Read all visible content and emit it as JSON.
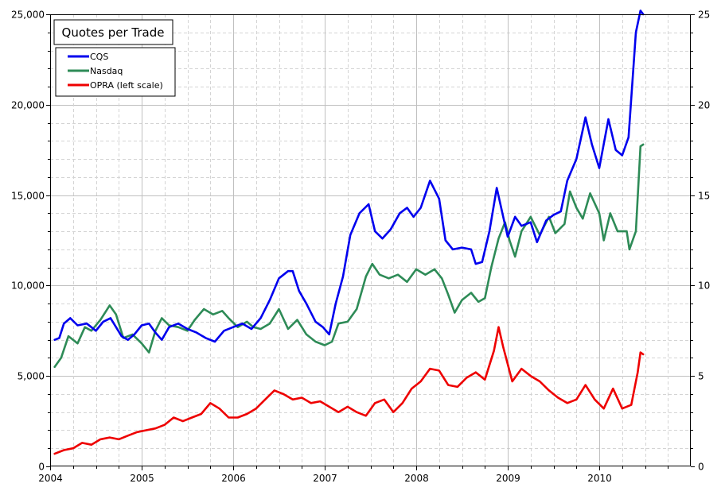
{
  "chart_data": {
    "type": "line",
    "title": "Quotes per Trade",
    "xlabel": "",
    "ylabel": "",
    "xlim": [
      2004.0,
      2011.0
    ],
    "ylim": [
      0,
      25000
    ],
    "y2lim": [
      0,
      25
    ],
    "x_ticks": [
      2004,
      2005,
      2006,
      2007,
      2008,
      2009,
      2010
    ],
    "y_ticks": [
      0,
      5000,
      10000,
      15000,
      20000,
      25000
    ],
    "y_tick_labels": [
      "0",
      "5,000",
      "10,000",
      "15,000",
      "20,000",
      "25,000"
    ],
    "y2_ticks": [
      0,
      5,
      10,
      15,
      20,
      25
    ],
    "grid": true,
    "legend": "top-left",
    "series": [
      {
        "name": "CQS",
        "color": "#0000ee",
        "points": [
          [
            2004.05,
            7000
          ],
          [
            2004.1,
            7100
          ],
          [
            2004.15,
            7900
          ],
          [
            2004.22,
            8200
          ],
          [
            2004.3,
            7800
          ],
          [
            2004.4,
            7900
          ],
          [
            2004.5,
            7500
          ],
          [
            2004.58,
            8000
          ],
          [
            2004.66,
            8200
          ],
          [
            2004.72,
            7700
          ],
          [
            2004.78,
            7200
          ],
          [
            2004.85,
            7000
          ],
          [
            2004.92,
            7300
          ],
          [
            2005.0,
            7800
          ],
          [
            2005.08,
            7900
          ],
          [
            2005.15,
            7400
          ],
          [
            2005.22,
            7000
          ],
          [
            2005.3,
            7700
          ],
          [
            2005.4,
            7900
          ],
          [
            2005.5,
            7600
          ],
          [
            2005.6,
            7400
          ],
          [
            2005.7,
            7100
          ],
          [
            2005.8,
            6900
          ],
          [
            2005.9,
            7500
          ],
          [
            2006.0,
            7700
          ],
          [
            2006.1,
            7900
          ],
          [
            2006.2,
            7600
          ],
          [
            2006.3,
            8200
          ],
          [
            2006.4,
            9200
          ],
          [
            2006.5,
            10400
          ],
          [
            2006.6,
            10800
          ],
          [
            2006.65,
            10800
          ],
          [
            2006.72,
            9700
          ],
          [
            2006.8,
            9000
          ],
          [
            2006.9,
            8000
          ],
          [
            2006.98,
            7700
          ],
          [
            2007.05,
            7300
          ],
          [
            2007.12,
            9000
          ],
          [
            2007.2,
            10500
          ],
          [
            2007.28,
            12800
          ],
          [
            2007.38,
            14000
          ],
          [
            2007.48,
            14500
          ],
          [
            2007.55,
            13000
          ],
          [
            2007.63,
            12600
          ],
          [
            2007.72,
            13100
          ],
          [
            2007.82,
            14000
          ],
          [
            2007.9,
            14300
          ],
          [
            2007.97,
            13800
          ],
          [
            2008.05,
            14300
          ],
          [
            2008.15,
            15800
          ],
          [
            2008.25,
            14800
          ],
          [
            2008.32,
            12500
          ],
          [
            2008.4,
            12000
          ],
          [
            2008.5,
            12100
          ],
          [
            2008.6,
            12000
          ],
          [
            2008.65,
            11200
          ],
          [
            2008.72,
            11300
          ],
          [
            2008.8,
            13000
          ],
          [
            2008.88,
            15400
          ],
          [
            2008.95,
            13800
          ],
          [
            2009.0,
            12700
          ],
          [
            2009.08,
            13800
          ],
          [
            2009.15,
            13300
          ],
          [
            2009.25,
            13500
          ],
          [
            2009.32,
            12400
          ],
          [
            2009.42,
            13600
          ],
          [
            2009.5,
            13900
          ],
          [
            2009.58,
            14100
          ],
          [
            2009.65,
            15800
          ],
          [
            2009.75,
            17000
          ],
          [
            2009.85,
            19300
          ],
          [
            2009.92,
            17800
          ],
          [
            2010.0,
            16500
          ],
          [
            2010.1,
            19200
          ],
          [
            2010.18,
            17500
          ],
          [
            2010.25,
            17200
          ],
          [
            2010.32,
            18200
          ],
          [
            2010.4,
            24000
          ],
          [
            2010.45,
            25200
          ],
          [
            2010.48,
            25000
          ]
        ]
      },
      {
        "name": "Nasdaq",
        "color": "#2e8b57",
        "points": [
          [
            2004.05,
            5500
          ],
          [
            2004.12,
            6000
          ],
          [
            2004.2,
            7200
          ],
          [
            2004.3,
            6800
          ],
          [
            2004.38,
            7700
          ],
          [
            2004.45,
            7500
          ],
          [
            2004.55,
            8100
          ],
          [
            2004.65,
            8900
          ],
          [
            2004.72,
            8400
          ],
          [
            2004.8,
            7100
          ],
          [
            2004.9,
            7300
          ],
          [
            2005.0,
            6800
          ],
          [
            2005.08,
            6300
          ],
          [
            2005.15,
            7500
          ],
          [
            2005.22,
            8200
          ],
          [
            2005.3,
            7800
          ],
          [
            2005.4,
            7700
          ],
          [
            2005.5,
            7500
          ],
          [
            2005.58,
            8100
          ],
          [
            2005.68,
            8700
          ],
          [
            2005.78,
            8400
          ],
          [
            2005.88,
            8600
          ],
          [
            2005.95,
            8200
          ],
          [
            2006.05,
            7700
          ],
          [
            2006.15,
            8000
          ],
          [
            2006.22,
            7700
          ],
          [
            2006.3,
            7600
          ],
          [
            2006.4,
            7900
          ],
          [
            2006.5,
            8700
          ],
          [
            2006.6,
            7600
          ],
          [
            2006.7,
            8100
          ],
          [
            2006.8,
            7300
          ],
          [
            2006.9,
            6900
          ],
          [
            2007.0,
            6700
          ],
          [
            2007.08,
            6900
          ],
          [
            2007.15,
            7900
          ],
          [
            2007.25,
            8000
          ],
          [
            2007.35,
            8700
          ],
          [
            2007.45,
            10500
          ],
          [
            2007.52,
            11200
          ],
          [
            2007.6,
            10600
          ],
          [
            2007.7,
            10400
          ],
          [
            2007.8,
            10600
          ],
          [
            2007.9,
            10200
          ],
          [
            2008.0,
            10900
          ],
          [
            2008.1,
            10600
          ],
          [
            2008.2,
            10900
          ],
          [
            2008.28,
            10400
          ],
          [
            2008.35,
            9500
          ],
          [
            2008.42,
            8500
          ],
          [
            2008.5,
            9200
          ],
          [
            2008.6,
            9600
          ],
          [
            2008.68,
            9100
          ],
          [
            2008.75,
            9300
          ],
          [
            2008.82,
            11000
          ],
          [
            2008.9,
            12600
          ],
          [
            2008.97,
            13500
          ],
          [
            2009.02,
            12500
          ],
          [
            2009.08,
            11600
          ],
          [
            2009.15,
            13000
          ],
          [
            2009.25,
            13800
          ],
          [
            2009.35,
            12800
          ],
          [
            2009.45,
            13800
          ],
          [
            2009.52,
            12900
          ],
          [
            2009.62,
            13400
          ],
          [
            2009.68,
            15200
          ],
          [
            2009.75,
            14300
          ],
          [
            2009.82,
            13700
          ],
          [
            2009.9,
            15100
          ],
          [
            2010.0,
            14000
          ],
          [
            2010.05,
            12500
          ],
          [
            2010.12,
            14000
          ],
          [
            2010.2,
            13000
          ],
          [
            2010.3,
            13000
          ],
          [
            2010.33,
            12000
          ],
          [
            2010.4,
            13000
          ],
          [
            2010.45,
            17700
          ],
          [
            2010.48,
            17800
          ]
        ]
      },
      {
        "name": "OPRA (left scale)",
        "color": "#ee0000",
        "points": [
          [
            2004.05,
            700
          ],
          [
            2004.15,
            900
          ],
          [
            2004.25,
            1000
          ],
          [
            2004.35,
            1300
          ],
          [
            2004.45,
            1200
          ],
          [
            2004.55,
            1500
          ],
          [
            2004.65,
            1600
          ],
          [
            2004.75,
            1500
          ],
          [
            2004.85,
            1700
          ],
          [
            2004.95,
            1900
          ],
          [
            2005.05,
            2000
          ],
          [
            2005.15,
            2100
          ],
          [
            2005.25,
            2300
          ],
          [
            2005.35,
            2700
          ],
          [
            2005.45,
            2500
          ],
          [
            2005.55,
            2700
          ],
          [
            2005.65,
            2900
          ],
          [
            2005.75,
            3500
          ],
          [
            2005.85,
            3200
          ],
          [
            2005.95,
            2700
          ],
          [
            2006.05,
            2700
          ],
          [
            2006.15,
            2900
          ],
          [
            2006.25,
            3200
          ],
          [
            2006.35,
            3700
          ],
          [
            2006.45,
            4200
          ],
          [
            2006.55,
            4000
          ],
          [
            2006.65,
            3700
          ],
          [
            2006.75,
            3800
          ],
          [
            2006.85,
            3500
          ],
          [
            2006.95,
            3600
          ],
          [
            2007.05,
            3300
          ],
          [
            2007.15,
            3000
          ],
          [
            2007.25,
            3300
          ],
          [
            2007.35,
            3000
          ],
          [
            2007.45,
            2800
          ],
          [
            2007.55,
            3500
          ],
          [
            2007.65,
            3700
          ],
          [
            2007.75,
            3000
          ],
          [
            2007.85,
            3500
          ],
          [
            2007.95,
            4300
          ],
          [
            2008.05,
            4700
          ],
          [
            2008.15,
            5400
          ],
          [
            2008.25,
            5300
          ],
          [
            2008.35,
            4500
          ],
          [
            2008.45,
            4400
          ],
          [
            2008.55,
            4900
          ],
          [
            2008.65,
            5200
          ],
          [
            2008.75,
            4800
          ],
          [
            2008.85,
            6400
          ],
          [
            2008.9,
            7700
          ],
          [
            2008.95,
            6600
          ],
          [
            2009.05,
            4700
          ],
          [
            2009.15,
            5400
          ],
          [
            2009.25,
            5000
          ],
          [
            2009.35,
            4700
          ],
          [
            2009.45,
            4200
          ],
          [
            2009.55,
            3800
          ],
          [
            2009.65,
            3500
          ],
          [
            2009.75,
            3700
          ],
          [
            2009.85,
            4500
          ],
          [
            2009.95,
            3700
          ],
          [
            2010.05,
            3200
          ],
          [
            2010.15,
            4300
          ],
          [
            2010.25,
            3200
          ],
          [
            2010.35,
            3400
          ],
          [
            2010.42,
            5200
          ],
          [
            2010.45,
            6300
          ],
          [
            2010.48,
            6200
          ]
        ]
      }
    ]
  }
}
